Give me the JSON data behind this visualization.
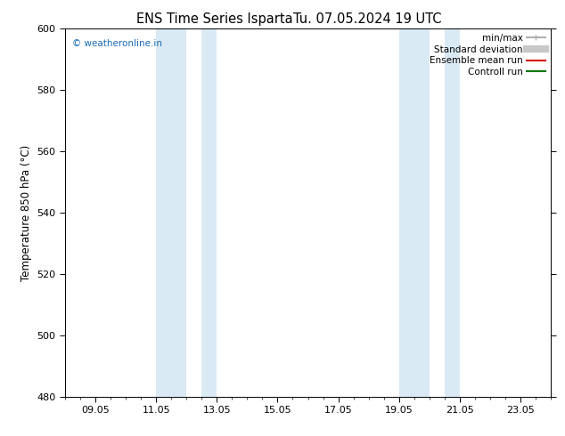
{
  "title_left": "ENS Time Series Isparta",
  "title_right": "Tu. 07.05.2024 19 UTC",
  "ylabel": "Temperature 850 hPa (°C)",
  "ylim": [
    480,
    600
  ],
  "yticks": [
    480,
    500,
    520,
    540,
    560,
    580,
    600
  ],
  "xtick_labels": [
    "09.05",
    "11.05",
    "13.05",
    "15.05",
    "17.05",
    "19.05",
    "21.05",
    "23.05"
  ],
  "xtick_positions": [
    1,
    3,
    5,
    7,
    9,
    11,
    13,
    15
  ],
  "xlim": [
    0,
    16
  ],
  "shaded_bands": [
    {
      "x_start": 3.0,
      "x_end": 4.0
    },
    {
      "x_start": 4.5,
      "x_end": 5.0
    },
    {
      "x_start": 11.0,
      "x_end": 12.0
    },
    {
      "x_start": 12.5,
      "x_end": 13.0
    }
  ],
  "shaded_color": "#daeaf5",
  "background_color": "#ffffff",
  "watermark_text": "© weatheronline.in",
  "watermark_color": "#1a6bb5",
  "legend_entries": [
    {
      "label": "min/max",
      "color": "#b0b0b0",
      "lw": 1.5
    },
    {
      "label": "Standard deviation",
      "color": "#c8c8c8",
      "lw": 6
    },
    {
      "label": "Ensemble mean run",
      "color": "#dd0000",
      "lw": 1.5
    },
    {
      "label": "Controll run",
      "color": "#007700",
      "lw": 1.5
    }
  ],
  "tick_fontsize": 8,
  "label_fontsize": 8.5,
  "title_fontsize": 10.5,
  "legend_fontsize": 7.5
}
